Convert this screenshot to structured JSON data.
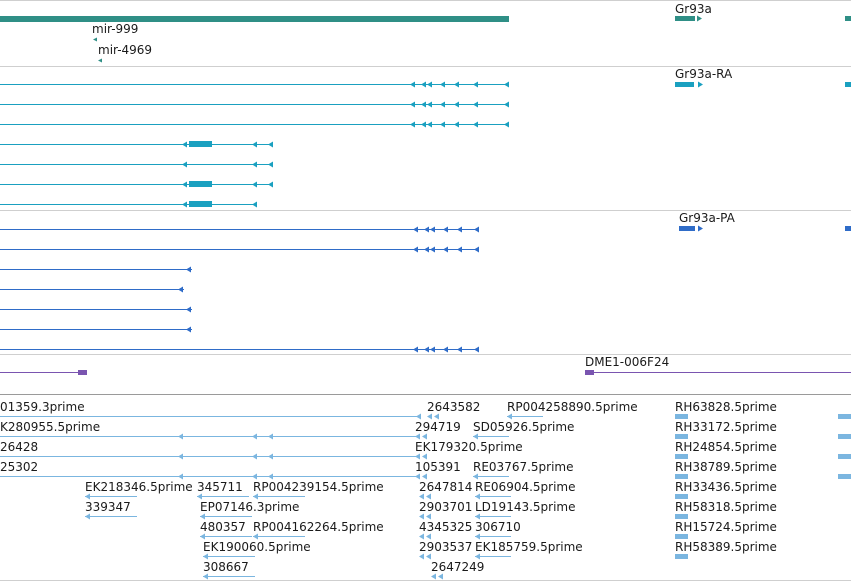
{
  "tracks": {
    "mirna": {
      "labels": [
        "mir-999",
        "mir-4969",
        "Gr93a"
      ],
      "color": "#2f8f86"
    },
    "transcripts_rna": {
      "labels": [
        "Gr93a-RA"
      ],
      "color": "#1aa0c0"
    },
    "transcripts_protein": {
      "labels": [
        "Gr93a-PA"
      ],
      "color": "#2f6cc8"
    },
    "insertion": {
      "labels": [
        "DME1-006F24"
      ],
      "color": "#7a55b0"
    },
    "est": {
      "color": "#7bb6e0",
      "labels": [
        "01359.3prime",
        "2643582",
        "RP004258890.5prime",
        "RH63828.5prime",
        "K280955.5prime",
        "294719",
        "SD05926.5prime",
        "RH33172.5prime",
        "26428",
        "EK179320.5prime",
        "RH24854.5prime",
        "25302",
        "105391",
        "RE03767.5prime",
        "RH38789.5prime",
        "EK218346.5prime",
        "345711",
        "RP004239154.5prime",
        "2647814",
        "RE06904.5prime",
        "RH33436.5prime",
        "339347",
        "EP07146.3prime",
        "2903701",
        "LD19143.5prime",
        "RH58318.5prime",
        "480357",
        "RP004162264.5prime",
        "4345325",
        "306710",
        "RH15724.5prime",
        "EK190060.5prime",
        "2903537",
        "EK185759.5prime",
        "RH58389.5prime",
        "308667",
        "2647249"
      ]
    }
  }
}
